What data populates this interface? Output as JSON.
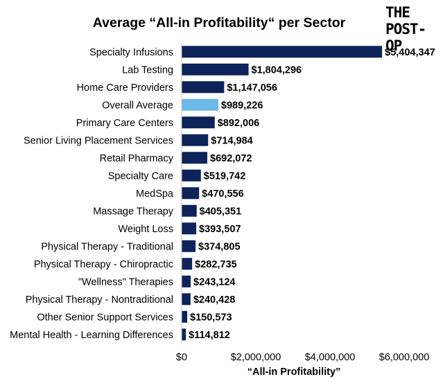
{
  "logo": {
    "line1": "THE",
    "line2": "POST-OP"
  },
  "chart_data": {
    "type": "bar",
    "orientation": "horizontal",
    "title": "Average “All-in Profitability“ per Sector",
    "xlabel": "“All-in Profitability”",
    "ylabel": "",
    "xlim": [
      0,
      6500000
    ],
    "xticks": [
      0,
      2000000,
      4000000,
      6000000
    ],
    "xtick_labels": [
      "$0",
      "$2,000,000",
      "$4,000,000",
      "$6,000,000"
    ],
    "grid": false,
    "legend": "none",
    "categories": [
      "Specialty Infusions",
      "Lab Testing",
      "Home Care Providers",
      "Overall Average",
      "Primary Care Centers",
      "Senior Living Placement Services",
      "Retail Pharmacy",
      "Specialty Care",
      "MedSpa",
      "Massage Therapy",
      "Weight Loss",
      "Physical Therapy - Traditional",
      "Physical Therapy - Chiropractic",
      "\"Wellness\" Therapies",
      "Physical Therapy - Nontraditional",
      "Other Senior Support Services",
      "Mental Health - Learning Differences"
    ],
    "values": [
      5404347,
      1804296,
      1147056,
      989226,
      892006,
      714984,
      692072,
      519742,
      470556,
      405351,
      393507,
      374805,
      282735,
      243124,
      240428,
      150573,
      114812
    ],
    "value_labels": [
      "$5,404,347",
      "$1,804,296",
      "$1,147,056",
      "$989,226",
      "$892,006",
      "$714,984",
      "$692,072",
      "$519,742",
      "$470,556",
      "$405,351",
      "$393,507",
      "$374,805",
      "$282,735",
      "$243,124",
      "$240,428",
      "$150,573",
      "$114,812"
    ],
    "colors": {
      "bar": "#0d2359",
      "highlight": "#6db9e8"
    },
    "highlight_category": "Overall Average"
  }
}
